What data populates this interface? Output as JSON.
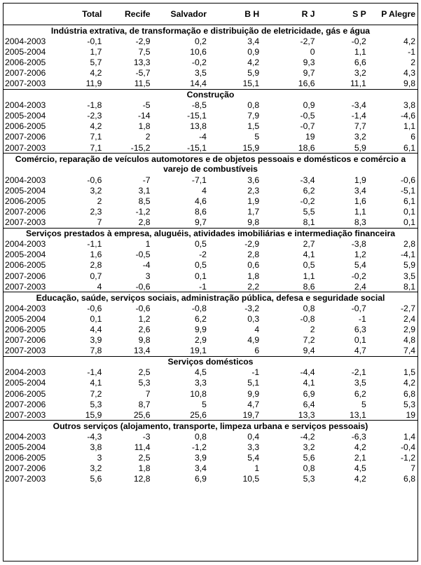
{
  "columns": [
    "",
    "Total",
    "Recife",
    "Salvador",
    "B H",
    "R J",
    "S P",
    "P Alegre"
  ],
  "sections": [
    {
      "title": "Indústria extrativa, de transformação e distribuição de eletricidade, gás e água",
      "rows": [
        [
          "2004-2003",
          "-0,1",
          "-2,9",
          "0,2",
          "3,4",
          "-2,7",
          "-0,2",
          "4,2"
        ],
        [
          "2005-2004",
          "1,7",
          "7,5",
          "10,6",
          "0,9",
          "0",
          "1,1",
          "-1"
        ],
        [
          "2006-2005",
          "5,7",
          "13,3",
          "-0,2",
          "4,2",
          "9,3",
          "6,6",
          "2"
        ],
        [
          "2007-2006",
          "4,2",
          "-5,7",
          "3,5",
          "5,9",
          "9,7",
          "3,2",
          "4,3"
        ],
        [
          "2007-2003",
          "11,9",
          "11,5",
          "14,4",
          "15,1",
          "16,6",
          "11,1",
          "9,8"
        ]
      ]
    },
    {
      "title": "Construção",
      "rows": [
        [
          "2004-2003",
          "-1,8",
          "-5",
          "-8,5",
          "0,8",
          "0,9",
          "-3,4",
          "3,8"
        ],
        [
          "2005-2004",
          "-2,3",
          "-14",
          "-15,1",
          "7,9",
          "-0,5",
          "-1,4",
          "-4,6"
        ],
        [
          "2006-2005",
          "4,2",
          "1,8",
          "13,8",
          "1,5",
          "-0,7",
          "7,7",
          "1,1"
        ],
        [
          "2007-2006",
          "7,1",
          "2",
          "-4",
          "5",
          "19",
          "3,2",
          "6"
        ],
        [
          "2007-2003",
          "7,1",
          "-15,2",
          "-15,1",
          "15,9",
          "18,6",
          "5,9",
          "6,1"
        ]
      ]
    },
    {
      "title": "Comércio, reparação de veículos automotores e de objetos pessoais e domésticos e comércio a varejo de combustíveis",
      "rows": [
        [
          "2004-2003",
          "-0,6",
          "-7",
          "-7,1",
          "3,6",
          "-3,4",
          "1,9",
          "-0,6"
        ],
        [
          "2005-2004",
          "3,2",
          "3,1",
          "4",
          "2,3",
          "6,2",
          "3,4",
          "-5,1"
        ],
        [
          "2006-2005",
          "2",
          "8,5",
          "4,6",
          "1,9",
          "-0,2",
          "1,6",
          "6,1"
        ],
        [
          "2007-2006",
          "2,3",
          "-1,2",
          "8,6",
          "1,7",
          "5,5",
          "1,1",
          "0,1"
        ],
        [
          "2007-2003",
          "7",
          "2,8",
          "9,7",
          "9,8",
          "8,1",
          "8,3",
          "0,1"
        ]
      ]
    },
    {
      "title": "Serviços prestados à empresa, aluguéis, atividades imobiliárias e intermediação financeira",
      "rows": [
        [
          "2004-2003",
          "-1,1",
          "1",
          "0,5",
          "-2,9",
          "2,7",
          "-3,8",
          "2,8"
        ],
        [
          "2005-2004",
          "1,6",
          "-0,5",
          "-2",
          "2,8",
          "4,1",
          "1,2",
          "-4,1"
        ],
        [
          "2006-2005",
          "2,8",
          "-4",
          "0,5",
          "0,6",
          "0,5",
          "5,4",
          "5,9"
        ],
        [
          "2007-2006",
          "0,7",
          "3",
          "0,1",
          "1,8",
          "1,1",
          "-0,2",
          "3,5"
        ],
        [
          "2007-2003",
          "4",
          "-0,6",
          "-1",
          "2,2",
          "8,6",
          "2,4",
          "8,1"
        ]
      ]
    },
    {
      "title": "Educação, saúde, serviços sociais, administração pública, defesa e seguridade social",
      "rows": [
        [
          "2004-2003",
          "-0,6",
          "-0,6",
          "-0,8",
          "-3,2",
          "0,8",
          "-0,7",
          "-2,7"
        ],
        [
          "2005-2004",
          "0,1",
          "1,2",
          "6,2",
          "0,3",
          "-0,8",
          "-1",
          "2,4"
        ],
        [
          "2006-2005",
          "4,4",
          "2,6",
          "9,9",
          "4",
          "2",
          "6,3",
          "2,9"
        ],
        [
          "2007-2006",
          "3,9",
          "9,8",
          "2,9",
          "4,9",
          "7,2",
          "0,1",
          "4,8"
        ],
        [
          "2007-2003",
          "7,8",
          "13,4",
          "19,1",
          "6",
          "9,4",
          "4,7",
          "7,4"
        ]
      ]
    },
    {
      "title": "Serviços domésticos",
      "rows": [
        [
          "2004-2003",
          "-1,4",
          "2,5",
          "4,5",
          "-1",
          "-4,4",
          "-2,1",
          "1,5"
        ],
        [
          "2005-2004",
          "4,1",
          "5,3",
          "3,3",
          "5,1",
          "4,1",
          "3,5",
          "4,2"
        ],
        [
          "2006-2005",
          "7,2",
          "7",
          "10,8",
          "9,9",
          "6,9",
          "6,2",
          "6,8"
        ],
        [
          "2007-2006",
          "5,3",
          "8,7",
          "5",
          "4,7",
          "6,4",
          "5",
          "5,3"
        ],
        [
          "2007-2003",
          "15,9",
          "25,6",
          "25,6",
          "19,7",
          "13,3",
          "13,1",
          "19"
        ]
      ]
    },
    {
      "title": "Outros serviços (alojamento, transporte, limpeza urbana e serviços pessoais)",
      "rows": [
        [
          "2004-2003",
          "-4,3",
          "-3",
          "0,8",
          "0,4",
          "-4,2",
          "-6,3",
          "1,4"
        ],
        [
          "2005-2004",
          "3,8",
          "11,4",
          "-1,2",
          "3,3",
          "3,2",
          "4,2",
          "-0,4"
        ],
        [
          "2006-2005",
          "3",
          "2,5",
          "3,9",
          "5,4",
          "5,6",
          "2,1",
          "-1,2"
        ],
        [
          "2007-2006",
          "3,2",
          "1,8",
          "3,4",
          "1",
          "0,8",
          "4,5",
          "7"
        ],
        [
          "2007-2003",
          "5,6",
          "12,8",
          "6,9",
          "10,5",
          "5,3",
          "4,2",
          "6,8"
        ]
      ]
    }
  ]
}
